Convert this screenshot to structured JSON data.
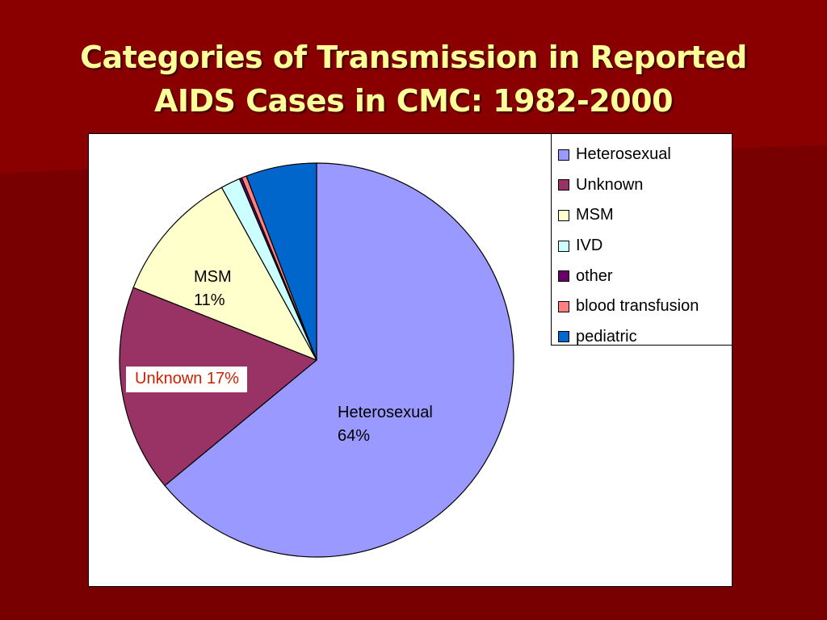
{
  "slide": {
    "title_line1": "Categories of Transmission in Reported",
    "title_line2": "AIDS Cases in CMC: 1982-2000"
  },
  "chart_data": {
    "type": "pie",
    "title": "",
    "slices": [
      {
        "name": "Heterosexual",
        "value": 64,
        "color": "#9999ff"
      },
      {
        "name": "Unknown",
        "value": 17,
        "color": "#993366"
      },
      {
        "name": "MSM",
        "value": 11,
        "color": "#ffffcc"
      },
      {
        "name": "IVD",
        "value": 1.6,
        "color": "#ccffff"
      },
      {
        "name": "other",
        "value": 0.2,
        "color": "#660066"
      },
      {
        "name": "blood transfusion",
        "value": 0.4,
        "color": "#ff8080"
      },
      {
        "name": "pediatric",
        "value": 5.8,
        "color": "#0066cc"
      }
    ],
    "data_labels": [
      {
        "slice": "Heterosexual",
        "line1": "Heterosexual",
        "line2": "64%"
      },
      {
        "slice": "MSM",
        "line1": "MSM",
        "line2": "11%"
      },
      {
        "slice": "Unknown",
        "text": "Unknown 17%"
      }
    ],
    "legend_position": "top-right"
  }
}
